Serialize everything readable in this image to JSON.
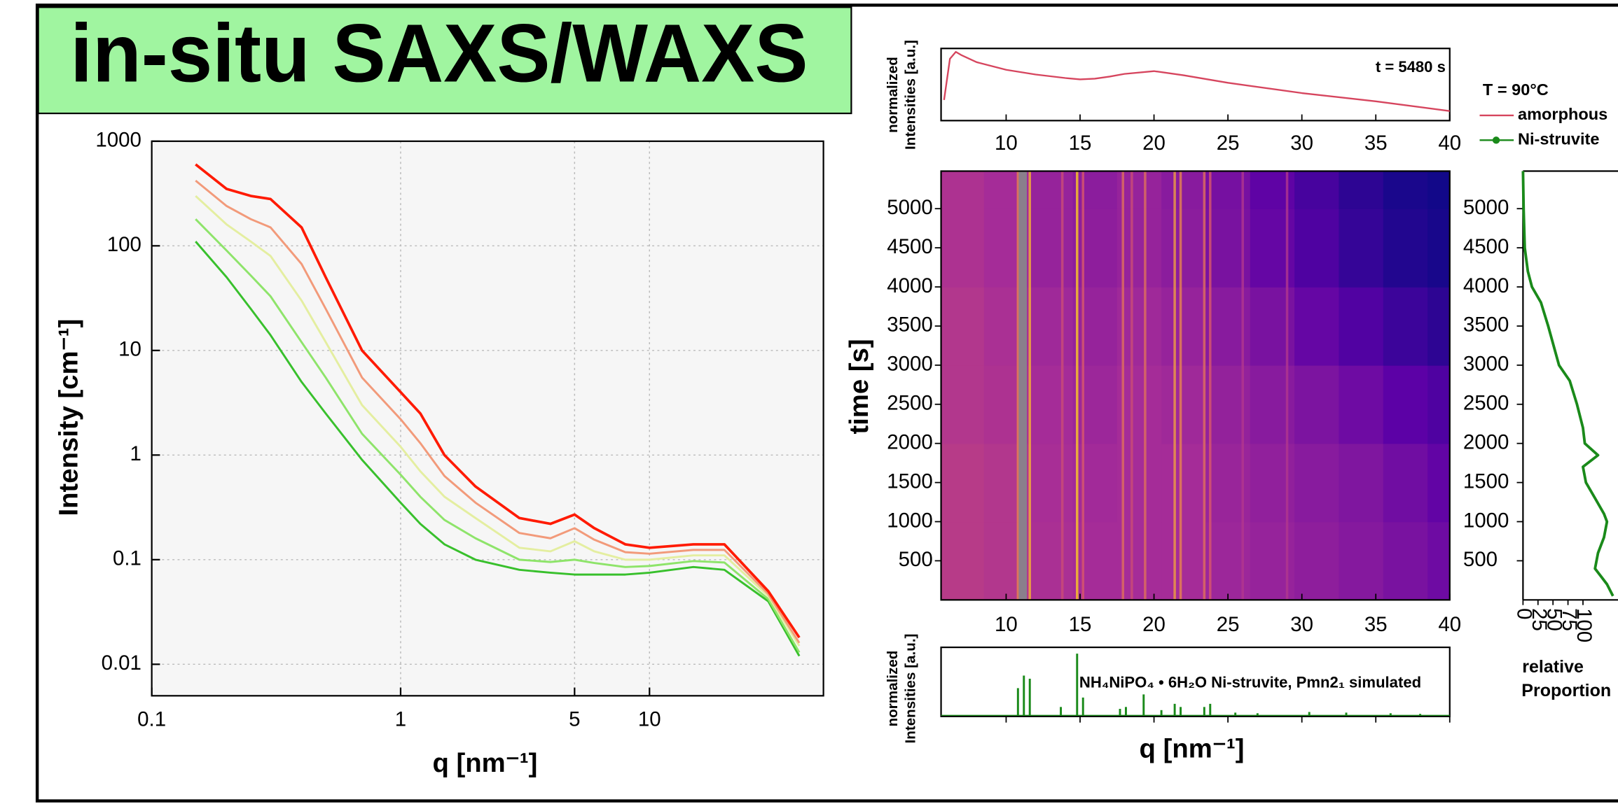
{
  "title": "in-situ SAXS/WAXS",
  "chart_data": [
    {
      "type": "line",
      "xlabel": "q [nm⁻¹]",
      "ylabel": "Intensity [cm⁻¹]",
      "xscale": "log",
      "yscale": "log",
      "grid": true,
      "x": [
        0.15,
        0.2,
        0.25,
        0.3,
        0.4,
        0.5,
        0.7,
        1,
        1.2,
        1.5,
        2,
        3,
        4,
        5,
        6,
        8,
        10,
        15,
        20,
        30,
        40
      ],
      "series": [
        {
          "color": "#38c02c",
          "values": [
            110,
            50,
            25,
            14,
            5,
            2.5,
            0.9,
            0.35,
            0.22,
            0.14,
            0.1,
            0.08,
            0.075,
            0.072,
            0.072,
            0.072,
            0.075,
            0.085,
            0.08,
            0.04,
            0.012
          ]
        },
        {
          "color": "#8ee46a",
          "values": [
            180,
            90,
            52,
            33,
            12,
            5.5,
            1.6,
            0.65,
            0.4,
            0.24,
            0.16,
            0.1,
            0.095,
            0.1,
            0.093,
            0.085,
            0.087,
            0.097,
            0.094,
            0.042,
            0.013
          ]
        },
        {
          "color": "#e4eea0",
          "values": [
            300,
            160,
            110,
            80,
            30,
            12,
            3,
            1.2,
            0.7,
            0.4,
            0.25,
            0.13,
            0.12,
            0.15,
            0.12,
            0.1,
            0.1,
            0.11,
            0.11,
            0.045,
            0.015
          ]
        },
        {
          "color": "#f29a7a",
          "values": [
            420,
            240,
            180,
            150,
            67,
            25,
            5.5,
            2.2,
            1.3,
            0.63,
            0.35,
            0.18,
            0.16,
            0.2,
            0.155,
            0.118,
            0.114,
            0.124,
            0.124,
            0.047,
            0.016
          ]
        },
        {
          "color": "#ff1a00",
          "values": [
            600,
            350,
            300,
            280,
            150,
            50,
            10,
            4,
            2.5,
            1,
            0.5,
            0.25,
            0.22,
            0.27,
            0.2,
            0.14,
            0.13,
            0.14,
            0.14,
            0.05,
            0.018
          ]
        }
      ],
      "xlim": [
        0.1,
        50
      ],
      "ylim": [
        0.005,
        1000
      ],
      "xticks": [
        0.1,
        1,
        5,
        10
      ],
      "yticks": [
        0.01,
        0.1,
        1,
        10,
        100,
        1000
      ]
    },
    {
      "type": "line",
      "ylabel": [
        "normalized",
        "Intensities [a.u.]"
      ],
      "annotation": "t = 5480 s",
      "legend_title": "T = 90°C",
      "x": [
        5.8,
        6.2,
        6.6,
        7,
        8,
        10,
        12,
        14,
        15,
        16,
        17,
        18,
        20,
        22,
        25,
        30,
        35,
        40
      ],
      "series": [
        {
          "name": "amorphous",
          "color": "#d6455e",
          "values": [
            0.3,
            0.9,
            1.0,
            0.95,
            0.85,
            0.74,
            0.67,
            0.62,
            0.6,
            0.61,
            0.64,
            0.68,
            0.72,
            0.66,
            0.55,
            0.4,
            0.28,
            0.14
          ]
        }
      ],
      "xlim": [
        5.6,
        40
      ],
      "ylim": [
        0,
        1.05
      ],
      "xticks": [
        10,
        15,
        20,
        25,
        30,
        35,
        40
      ]
    },
    {
      "type": "heatmap",
      "ylabel": "time [s]",
      "colormap": "plasma",
      "x": [
        7,
        10,
        13,
        16,
        19,
        22,
        25,
        28,
        31,
        34,
        37,
        40
      ],
      "y": [
        500,
        1500,
        2500,
        3500,
        4500,
        5500
      ],
      "z": [
        [
          0.62,
          0.6,
          0.57,
          0.55,
          0.55,
          0.55,
          0.52,
          0.5,
          0.47,
          0.44,
          0.4,
          0.36
        ],
        [
          0.62,
          0.6,
          0.56,
          0.54,
          0.55,
          0.55,
          0.51,
          0.48,
          0.45,
          0.42,
          0.37,
          0.32
        ],
        [
          0.6,
          0.58,
          0.55,
          0.52,
          0.55,
          0.53,
          0.49,
          0.45,
          0.41,
          0.36,
          0.3,
          0.25
        ],
        [
          0.6,
          0.57,
          0.53,
          0.5,
          0.53,
          0.5,
          0.45,
          0.4,
          0.33,
          0.26,
          0.18,
          0.12
        ],
        [
          0.58,
          0.55,
          0.5,
          0.47,
          0.5,
          0.46,
          0.4,
          0.33,
          0.25,
          0.15,
          0.08,
          0.04
        ],
        [
          0.58,
          0.55,
          0.5,
          0.46,
          0.5,
          0.45,
          0.39,
          0.31,
          0.22,
          0.12,
          0.05,
          0.02
        ]
      ],
      "peaks": [
        10.8,
        11.6,
        13.8,
        14.8,
        15.2,
        17.9,
        18.5,
        19.4,
        21.4,
        21.8,
        23.4,
        23.8,
        26,
        29
      ],
      "peak_values": [
        0.85,
        0.95,
        0.7,
        1.0,
        0.75,
        0.8,
        0.7,
        0.8,
        0.9,
        0.85,
        0.8,
        0.75,
        0.6,
        0.6
      ],
      "mask": [
        10.85,
        11.4
      ],
      "xlim": [
        5.6,
        40
      ],
      "ylim": [
        0,
        5480
      ],
      "xticks": [
        10,
        15,
        20,
        25,
        30,
        35,
        40
      ],
      "yticks": [
        500,
        1000,
        1500,
        2000,
        2500,
        3000,
        3500,
        4000,
        4500,
        5000
      ]
    },
    {
      "type": "line",
      "swap_axes": true,
      "xlabel": [
        "relative",
        "Proportion"
      ],
      "x": [
        5480,
        5000,
        4500,
        4200,
        4000,
        3800,
        3500,
        3000,
        2800,
        2500,
        2200,
        2000,
        1850,
        1700,
        1500,
        1300,
        1100,
        1000,
        800,
        600,
        400,
        200,
        50
      ],
      "series": [
        {
          "name": "Ni-struvite",
          "color": "#1a8a1a",
          "values": [
            0,
            1,
            3,
            8,
            15,
            30,
            42,
            60,
            78,
            90,
            100,
            103,
            125,
            100,
            105,
            120,
            135,
            140,
            135,
            125,
            120,
            140,
            150
          ]
        }
      ],
      "xlim": [
        0,
        5480
      ],
      "ylim": [
        0,
        160
      ],
      "xticks": [
        500,
        1000,
        1500,
        2000,
        2500,
        3000,
        3500,
        4000,
        4500,
        5000
      ],
      "yticks": [
        0,
        25,
        50,
        75,
        100
      ]
    },
    {
      "type": "stick",
      "xlabel": "q [nm⁻¹]",
      "ylabel": [
        "normalized",
        "Intensities [a.u.]"
      ],
      "annotation": "NH₄NiPO₄ • 6H₂O Ni-struvite, Pmn2₁ simulated",
      "color": "#1a8a1a",
      "x": [
        10.8,
        11.2,
        11.6,
        13.7,
        14.8,
        15.2,
        17.7,
        18.1,
        19.3,
        20.5,
        21.4,
        21.8,
        23.4,
        23.8,
        25.5,
        27,
        30.5,
        33,
        36,
        38
      ],
      "values": [
        0.45,
        0.65,
        0.6,
        0.15,
        1.0,
        0.3,
        0.12,
        0.15,
        0.35,
        0.1,
        0.2,
        0.15,
        0.15,
        0.2,
        0.06,
        0.05,
        0.07,
        0.06,
        0.05,
        0.04
      ],
      "xlim": [
        5.6,
        40
      ],
      "ylim": [
        0,
        1.1
      ],
      "xticks": [
        10,
        15,
        20,
        25,
        30,
        35,
        40
      ]
    }
  ]
}
